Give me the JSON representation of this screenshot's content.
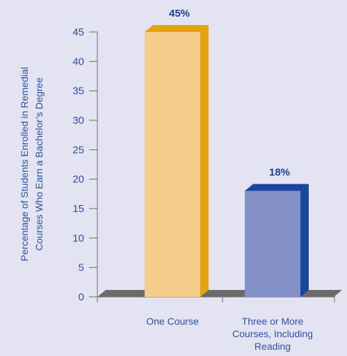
{
  "chart_data": {
    "type": "bar",
    "categories": [
      "One Course",
      "Three or More Courses, Including Reading"
    ],
    "category_label_lines": [
      [
        "One Course"
      ],
      [
        "Three or More",
        "Courses, Including",
        "Reading"
      ]
    ],
    "values": [
      45,
      18
    ],
    "data_labels": [
      "45%",
      "18%"
    ],
    "ylabel": "Percentage of Students Enrolled in Remedial Courses Who Earn a Bachelor’s Degree",
    "ylabel_lines": [
      "Percentage of Students Enrolled in Remedial",
      "Courses Who Earn a Bachelor’s Degree"
    ],
    "ylim": [
      0,
      45
    ],
    "yticks": [
      0,
      5,
      10,
      15,
      20,
      25,
      30,
      35,
      40,
      45
    ],
    "grid": false,
    "three_d": true
  },
  "colors": {
    "background": "#e3e3f1",
    "axis_text": "#2b52a3",
    "bar_1_front": "#f4cc8b",
    "bar_1_side": "#e7a20f",
    "bar_1_label": "#1d3f8f",
    "bar_2_front": "#8490c8",
    "bar_2_side": "#1747a0",
    "bar_2_label": "#1d3f8f",
    "floor": "#6b6b6b"
  }
}
